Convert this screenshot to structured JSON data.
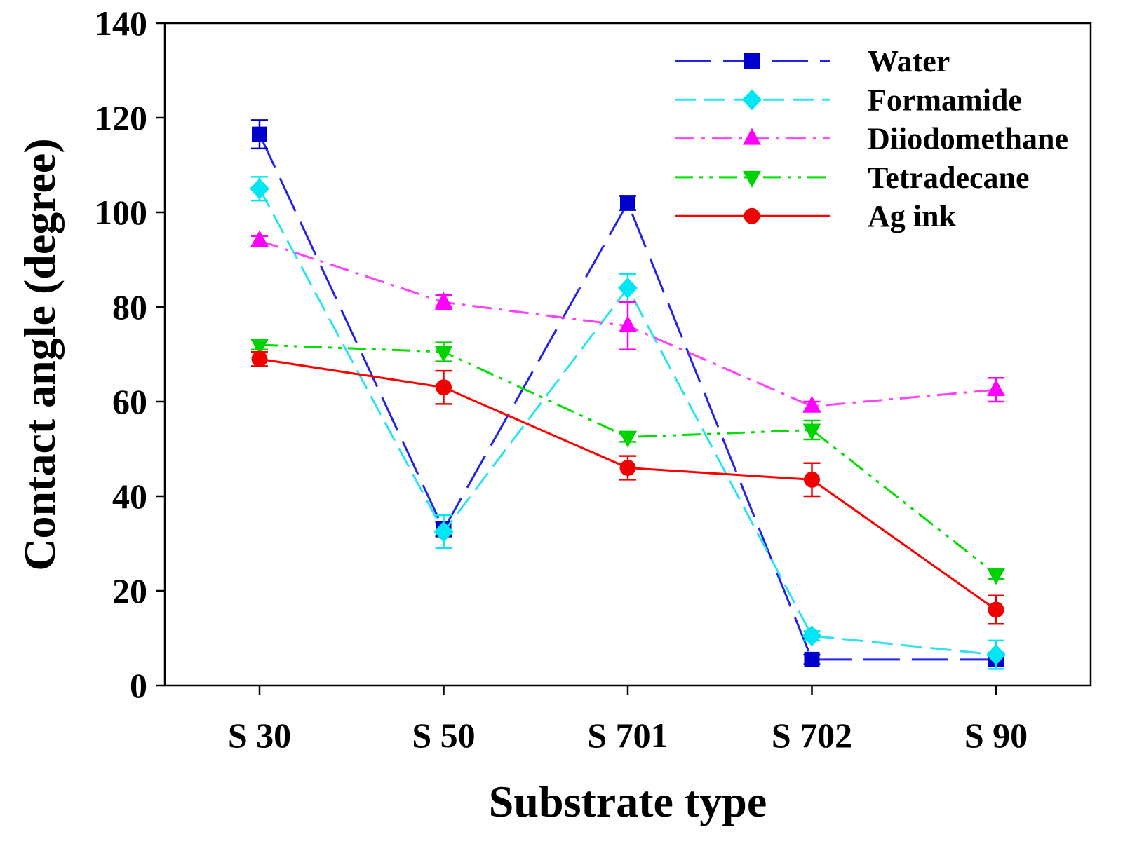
{
  "chart_data": {
    "type": "line",
    "xlabel": "Substrate type",
    "ylabel": "Contact angle (degree)",
    "categories": [
      "S 30",
      "S 50",
      "S 701",
      "S 702",
      "S 90"
    ],
    "ylim": [
      0,
      140
    ],
    "yticks": [
      0,
      20,
      40,
      60,
      80,
      100,
      120,
      140
    ],
    "grid": false,
    "legend": "top-right",
    "series": [
      {
        "name": "Water",
        "values": [
          116.5,
          33,
          102,
          5.5,
          5.5
        ],
        "errors": [
          3,
          1.5,
          1.5,
          1,
          1
        ],
        "color": "#2424E4",
        "marker_color": "#0000CC"
      },
      {
        "name": "Formamide",
        "values": [
          105,
          32.5,
          84,
          10.5,
          6.5
        ],
        "errors": [
          2.5,
          3.5,
          3,
          1,
          3
        ],
        "color": "#2CE3F0",
        "marker_color": "#00E6F2"
      },
      {
        "name": "Diiodomethane",
        "values": [
          94,
          81,
          76,
          59,
          62.5
        ],
        "errors": [
          1,
          1.5,
          5,
          1,
          2.5
        ],
        "color": "#FF40FF",
        "marker_color": "#FF00FF"
      },
      {
        "name": "Tetradecane",
        "values": [
          72,
          70.5,
          52.5,
          54,
          23.5
        ],
        "errors": [
          1,
          2,
          1,
          2,
          1
        ],
        "color": "#00E000",
        "marker_color": "#00D400"
      },
      {
        "name": "Ag ink",
        "values": [
          69,
          63,
          46,
          43.5,
          16
        ],
        "errors": [
          1.5,
          3.5,
          2.5,
          3.5,
          3
        ],
        "color": "#FF0000",
        "marker_color": "#F00000"
      }
    ]
  }
}
